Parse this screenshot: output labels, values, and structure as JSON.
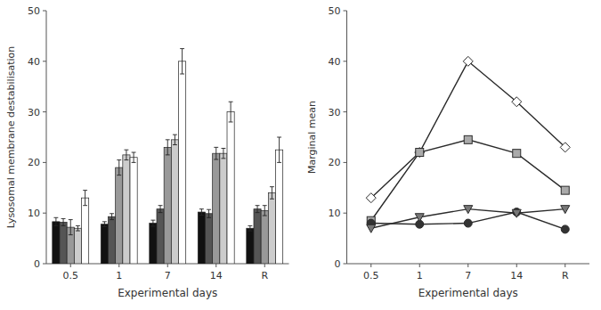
{
  "chart_data": [
    {
      "type": "bar",
      "categories": [
        "0.5",
        "1",
        "7",
        "14",
        "R"
      ],
      "series": [
        {
          "color": "#111111",
          "values": [
            8.3,
            7.8,
            8.0,
            10.2,
            7.0
          ],
          "errors": [
            0.8,
            0.5,
            0.6,
            0.6,
            0.5
          ]
        },
        {
          "color": "#555555",
          "values": [
            8.2,
            9.3,
            10.8,
            9.9,
            10.8
          ],
          "errors": [
            0.7,
            0.6,
            0.7,
            0.8,
            0.7
          ]
        },
        {
          "color": "#999999",
          "values": [
            7.2,
            19.0,
            23.0,
            21.8,
            10.5
          ],
          "errors": [
            1.5,
            1.5,
            1.5,
            1.2,
            1.0
          ]
        },
        {
          "color": "#cccccc",
          "values": [
            7.0,
            21.5,
            24.5,
            21.8,
            14.0
          ],
          "errors": [
            0.5,
            1.0,
            1.0,
            1.0,
            1.2
          ]
        },
        {
          "color": "#ffffff",
          "values": [
            13.0,
            21.0,
            40.0,
            30.0,
            22.5
          ],
          "errors": [
            1.5,
            1.0,
            2.5,
            2.0,
            2.5
          ]
        }
      ],
      "ylim": [
        0,
        50
      ],
      "yticks": [
        0,
        10,
        20,
        30,
        40,
        50
      ],
      "ylabel": "Lysosomal membrane destabilisation",
      "xlabel": "Experimental days",
      "grid": false
    },
    {
      "type": "line",
      "categories": [
        "0.5",
        "1",
        "7",
        "14",
        "R"
      ],
      "series": [
        {
          "marker": "diamond",
          "color": "#ffffff",
          "values": [
            13.0,
            22.0,
            40.0,
            32.0,
            23.0
          ]
        },
        {
          "marker": "square",
          "color": "#aaaaaa",
          "values": [
            8.5,
            22.0,
            24.5,
            21.8,
            14.5
          ]
        },
        {
          "marker": "circle",
          "color": "#333333",
          "values": [
            8.0,
            7.8,
            8.0,
            10.2,
            6.8
          ]
        },
        {
          "marker": "triangle_down",
          "color": "#777777",
          "values": [
            7.0,
            9.2,
            10.8,
            10.0,
            10.8
          ]
        }
      ],
      "ylim": [
        0,
        50
      ],
      "yticks": [
        0,
        10,
        20,
        30,
        40,
        50
      ],
      "ylabel": "Marginal mean",
      "xlabel": "Experimental days",
      "grid": false
    }
  ]
}
